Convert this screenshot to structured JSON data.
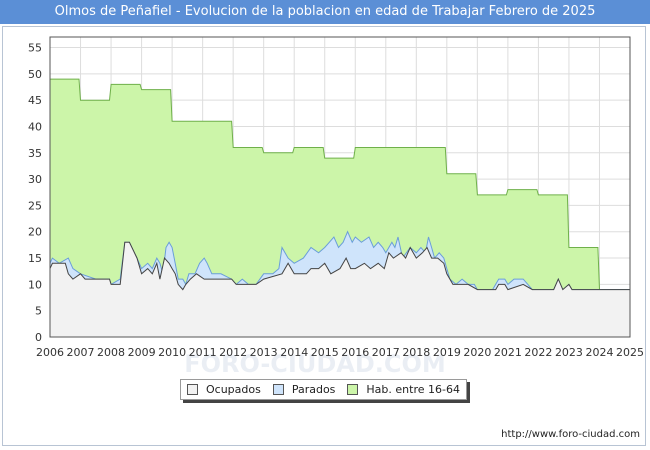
{
  "chart_data": {
    "type": "area",
    "title": "Olmos de Peñafiel - Evolucion de la poblacion en edad de Trabajar Febrero de 2025",
    "xlabel": "",
    "ylabel": "",
    "x_ticks": [
      "2006",
      "2007",
      "2008",
      "2009",
      "2010",
      "2011",
      "2012",
      "2013",
      "2014",
      "2015",
      "2016",
      "2017",
      "2018",
      "2019",
      "2020",
      "2021",
      "2022",
      "2023",
      "2024",
      "2025"
    ],
    "y_ticks": [
      0,
      5,
      10,
      15,
      20,
      25,
      30,
      35,
      40,
      45,
      50,
      55
    ],
    "xlim": [
      2006,
      2025
    ],
    "ylim": [
      0,
      57
    ],
    "grid": true,
    "legend_position": "bottom-center",
    "series": [
      {
        "name": "Hab. entre 16-64",
        "color": "#ccf5a9",
        "line": "#6fb04a",
        "values": [
          [
            2006,
            49
          ],
          [
            2006.95,
            49
          ],
          [
            2007,
            45
          ],
          [
            2007.95,
            45
          ],
          [
            2008,
            48
          ],
          [
            2008.95,
            48
          ],
          [
            2009,
            47
          ],
          [
            2009.95,
            47
          ],
          [
            2010,
            41
          ],
          [
            2011.95,
            41
          ],
          [
            2012,
            36
          ],
          [
            2012.95,
            36
          ],
          [
            2013,
            35
          ],
          [
            2013.95,
            35
          ],
          [
            2014,
            36
          ],
          [
            2014.95,
            36
          ],
          [
            2015,
            34
          ],
          [
            2015.95,
            34
          ],
          [
            2016,
            36
          ],
          [
            2018.95,
            36
          ],
          [
            2019,
            31
          ],
          [
            2019.95,
            31
          ],
          [
            2020,
            27
          ],
          [
            2020.95,
            27
          ],
          [
            2021,
            28
          ],
          [
            2021.95,
            28
          ],
          [
            2022,
            27
          ],
          [
            2022.95,
            27
          ],
          [
            2023,
            17
          ],
          [
            2023.95,
            17
          ],
          [
            2024,
            9
          ],
          [
            2025,
            9
          ]
        ]
      },
      {
        "name": "Parados",
        "color": "#cfe4fb",
        "line": "#6a9ed9",
        "values": [
          [
            2006,
            14
          ],
          [
            2006.08,
            15
          ],
          [
            2006.3,
            14
          ],
          [
            2006.6,
            15
          ],
          [
            2006.75,
            13
          ],
          [
            2007,
            12
          ],
          [
            2007.5,
            11
          ],
          [
            2007.95,
            11
          ],
          [
            2008,
            10
          ],
          [
            2008.3,
            11
          ],
          [
            2008.45,
            18
          ],
          [
            2008.6,
            18
          ],
          [
            2008.85,
            15
          ],
          [
            2009,
            13
          ],
          [
            2009.2,
            14
          ],
          [
            2009.35,
            13
          ],
          [
            2009.5,
            15
          ],
          [
            2009.6,
            14
          ],
          [
            2009.7,
            12
          ],
          [
            2009.8,
            17
          ],
          [
            2009.9,
            18
          ],
          [
            2010,
            17
          ],
          [
            2010.1,
            14
          ],
          [
            2010.2,
            11
          ],
          [
            2010.35,
            11
          ],
          [
            2010.45,
            10
          ],
          [
            2010.55,
            12
          ],
          [
            2010.75,
            12
          ],
          [
            2010.9,
            14
          ],
          [
            2011.05,
            15
          ],
          [
            2011.15,
            14
          ],
          [
            2011.3,
            12
          ],
          [
            2011.6,
            12
          ],
          [
            2011.95,
            11
          ],
          [
            2012.1,
            10
          ],
          [
            2012.3,
            11
          ],
          [
            2012.5,
            10
          ],
          [
            2012.75,
            10
          ],
          [
            2013,
            12
          ],
          [
            2013.3,
            12
          ],
          [
            2013.5,
            13
          ],
          [
            2013.6,
            17
          ],
          [
            2013.8,
            15
          ],
          [
            2014,
            14
          ],
          [
            2014.3,
            15
          ],
          [
            2014.55,
            17
          ],
          [
            2014.8,
            16
          ],
          [
            2015,
            17
          ],
          [
            2015.15,
            18
          ],
          [
            2015.3,
            19
          ],
          [
            2015.45,
            17
          ],
          [
            2015.6,
            18
          ],
          [
            2015.75,
            20
          ],
          [
            2015.9,
            18
          ],
          [
            2016,
            19
          ],
          [
            2016.2,
            18
          ],
          [
            2016.45,
            19
          ],
          [
            2016.6,
            17
          ],
          [
            2016.75,
            18
          ],
          [
            2016.9,
            17
          ],
          [
            2017,
            16
          ],
          [
            2017.2,
            18
          ],
          [
            2017.3,
            17
          ],
          [
            2017.4,
            19
          ],
          [
            2017.55,
            15
          ],
          [
            2017.8,
            17
          ],
          [
            2018,
            16
          ],
          [
            2018.15,
            17
          ],
          [
            2018.3,
            16
          ],
          [
            2018.4,
            19
          ],
          [
            2018.5,
            17
          ],
          [
            2018.6,
            15
          ],
          [
            2018.75,
            16
          ],
          [
            2018.9,
            15
          ],
          [
            2019,
            13
          ],
          [
            2019.1,
            11
          ],
          [
            2019.3,
            10
          ],
          [
            2019.5,
            11
          ],
          [
            2019.7,
            10
          ],
          [
            2019.9,
            10
          ],
          [
            2020,
            9
          ],
          [
            2020.5,
            9
          ],
          [
            2020.7,
            11
          ],
          [
            2020.9,
            11
          ],
          [
            2021,
            10
          ],
          [
            2021.2,
            11
          ],
          [
            2021.5,
            11
          ],
          [
            2021.8,
            9
          ],
          [
            2022,
            9
          ],
          [
            2022.5,
            9
          ],
          [
            2022.65,
            11
          ],
          [
            2022.8,
            9
          ],
          [
            2023,
            10
          ],
          [
            2023.1,
            9
          ],
          [
            2025,
            9
          ]
        ]
      },
      {
        "name": "Ocupados",
        "color": "#f2f2f2",
        "line": "#444444",
        "values": [
          [
            2006,
            13
          ],
          [
            2006.08,
            14
          ],
          [
            2006.5,
            14
          ],
          [
            2006.6,
            12
          ],
          [
            2006.75,
            11
          ],
          [
            2007,
            12
          ],
          [
            2007.15,
            11
          ],
          [
            2007.6,
            11
          ],
          [
            2007.95,
            11
          ],
          [
            2008,
            10
          ],
          [
            2008.3,
            10
          ],
          [
            2008.45,
            18
          ],
          [
            2008.6,
            18
          ],
          [
            2008.85,
            15
          ],
          [
            2009,
            12
          ],
          [
            2009.2,
            13
          ],
          [
            2009.35,
            12
          ],
          [
            2009.5,
            14
          ],
          [
            2009.6,
            11
          ],
          [
            2009.75,
            15
          ],
          [
            2009.9,
            14
          ],
          [
            2010,
            13
          ],
          [
            2010.1,
            12
          ],
          [
            2010.2,
            10
          ],
          [
            2010.35,
            9
          ],
          [
            2010.45,
            10
          ],
          [
            2010.6,
            11
          ],
          [
            2010.8,
            12
          ],
          [
            2011.05,
            11
          ],
          [
            2011.6,
            11
          ],
          [
            2011.95,
            11
          ],
          [
            2012.1,
            10
          ],
          [
            2012.75,
            10
          ],
          [
            2013,
            11
          ],
          [
            2013.6,
            12
          ],
          [
            2013.8,
            14
          ],
          [
            2014,
            12
          ],
          [
            2014.4,
            12
          ],
          [
            2014.55,
            13
          ],
          [
            2014.8,
            13
          ],
          [
            2015,
            14
          ],
          [
            2015.2,
            12
          ],
          [
            2015.5,
            13
          ],
          [
            2015.7,
            15
          ],
          [
            2015.85,
            13
          ],
          [
            2016,
            13
          ],
          [
            2016.3,
            14
          ],
          [
            2016.5,
            13
          ],
          [
            2016.75,
            14
          ],
          [
            2016.95,
            13
          ],
          [
            2017.1,
            16
          ],
          [
            2017.25,
            15
          ],
          [
            2017.5,
            16
          ],
          [
            2017.65,
            15
          ],
          [
            2017.8,
            17
          ],
          [
            2018,
            15
          ],
          [
            2018.2,
            16
          ],
          [
            2018.35,
            17
          ],
          [
            2018.5,
            15
          ],
          [
            2018.7,
            15
          ],
          [
            2018.9,
            14
          ],
          [
            2019,
            12
          ],
          [
            2019.2,
            10
          ],
          [
            2019.4,
            10
          ],
          [
            2019.7,
            10
          ],
          [
            2020,
            9
          ],
          [
            2020.6,
            9
          ],
          [
            2020.7,
            10
          ],
          [
            2020.9,
            10
          ],
          [
            2021,
            9
          ],
          [
            2021.5,
            10
          ],
          [
            2021.8,
            9
          ],
          [
            2022,
            9
          ],
          [
            2022.5,
            9
          ],
          [
            2022.65,
            11
          ],
          [
            2022.8,
            9
          ],
          [
            2023,
            10
          ],
          [
            2023.1,
            9
          ],
          [
            2025,
            9
          ]
        ]
      }
    ]
  },
  "legend": {
    "items": [
      {
        "label": "Ocupados",
        "color": "#f2f2f2"
      },
      {
        "label": "Parados",
        "color": "#cfe4fb"
      },
      {
        "label": "Hab. entre 16-64",
        "color": "#ccf5a9"
      }
    ]
  },
  "source_url": "http://www.foro-ciudad.com",
  "watermark": "FORO-CIUDAD.COM"
}
